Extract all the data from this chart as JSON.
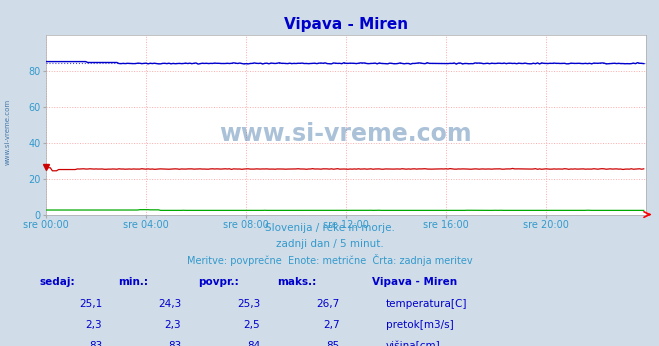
{
  "title": "Vipava - Miren",
  "title_color": "#0000cc",
  "bg_color": "#d0dde8",
  "plot_bg_color": "#ffffff",
  "ylim": [
    0,
    100
  ],
  "yticks": [
    0,
    20,
    40,
    60,
    80
  ],
  "xlim": [
    0,
    288
  ],
  "xtick_labels": [
    "sre 00:00",
    "sre 04:00",
    "sre 08:00",
    "sre 12:00",
    "sre 16:00",
    "sre 20:00"
  ],
  "xtick_positions": [
    0,
    48,
    96,
    144,
    192,
    240
  ],
  "temp_value": 25.3,
  "temp_min": 24.3,
  "temp_max": 26.7,
  "flow_value": 2.5,
  "flow_min": 2.3,
  "flow_max": 2.7,
  "height_value": 84,
  "height_min": 83,
  "height_max": 85,
  "temp_color": "#cc0000",
  "flow_color": "#00aa00",
  "height_color": "#0000cc",
  "height_dotted_color": "#0000cc",
  "watermark": "www.si-vreme.com",
  "watermark_color": "#4477aa",
  "subtitle1": "Slovenija / reke in morje.",
  "subtitle2": "zadnji dan / 5 minut.",
  "subtitle3": "Meritve: povprečne  Enote: metrične  Črta: zadnja meritev",
  "legend_title": "Vipava - Miren",
  "legend_items": [
    "temperatura[C]",
    "pretok[m3/s]",
    "višina[cm]"
  ],
  "legend_colors": [
    "#cc0000",
    "#00aa00",
    "#0000cc"
  ],
  "table_headers": [
    "sedaj:",
    "min.:",
    "povpr.:",
    "maks.:"
  ],
  "table_values": [
    [
      "25,1",
      "24,3",
      "25,3",
      "26,7"
    ],
    [
      "2,3",
      "2,3",
      "2,5",
      "2,7"
    ],
    [
      "83",
      "83",
      "84",
      "85"
    ]
  ],
  "left_label": "www.si-vreme.com",
  "grid_color": "#ffaaaa",
  "border_color": "#ff0000",
  "text_color": "#3399cc"
}
